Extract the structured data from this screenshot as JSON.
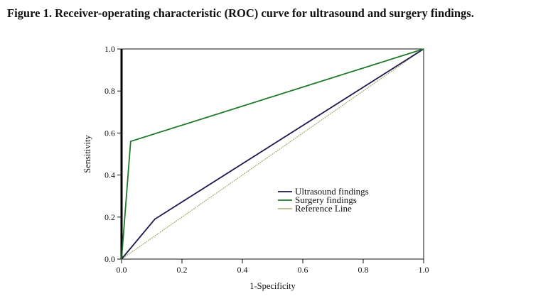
{
  "figure_title": "Figure 1. Receiver-operating characteristic (ROC) curve for ultrasound and surgery findings.",
  "chart_data": {
    "type": "line",
    "title": "",
    "xlabel": "1-Specificity",
    "ylabel": "Sensitivity",
    "xlim": [
      0,
      1
    ],
    "ylim": [
      0,
      1
    ],
    "xticks": [
      "0.0",
      "0.2",
      "0.4",
      "0.6",
      "0.8",
      "1.0"
    ],
    "yticks": [
      "0.0",
      "0.2",
      "0.4",
      "0.6",
      "0.8",
      "1.0"
    ],
    "grid": false,
    "legend_position": "center-right",
    "series": [
      {
        "name": "Ultrasound findings",
        "color": "#1a1a4e",
        "points": [
          [
            0,
            0
          ],
          [
            0.11,
            0.19
          ],
          [
            1,
            1
          ]
        ]
      },
      {
        "name": "Surgery findings",
        "color": "#1f7a2a",
        "points": [
          [
            0,
            0
          ],
          [
            0.03,
            0.56
          ],
          [
            1,
            1
          ]
        ]
      },
      {
        "name": "Reference Line",
        "color": "#9a9a55",
        "points": [
          [
            0,
            0
          ],
          [
            1,
            1
          ]
        ]
      }
    ]
  }
}
